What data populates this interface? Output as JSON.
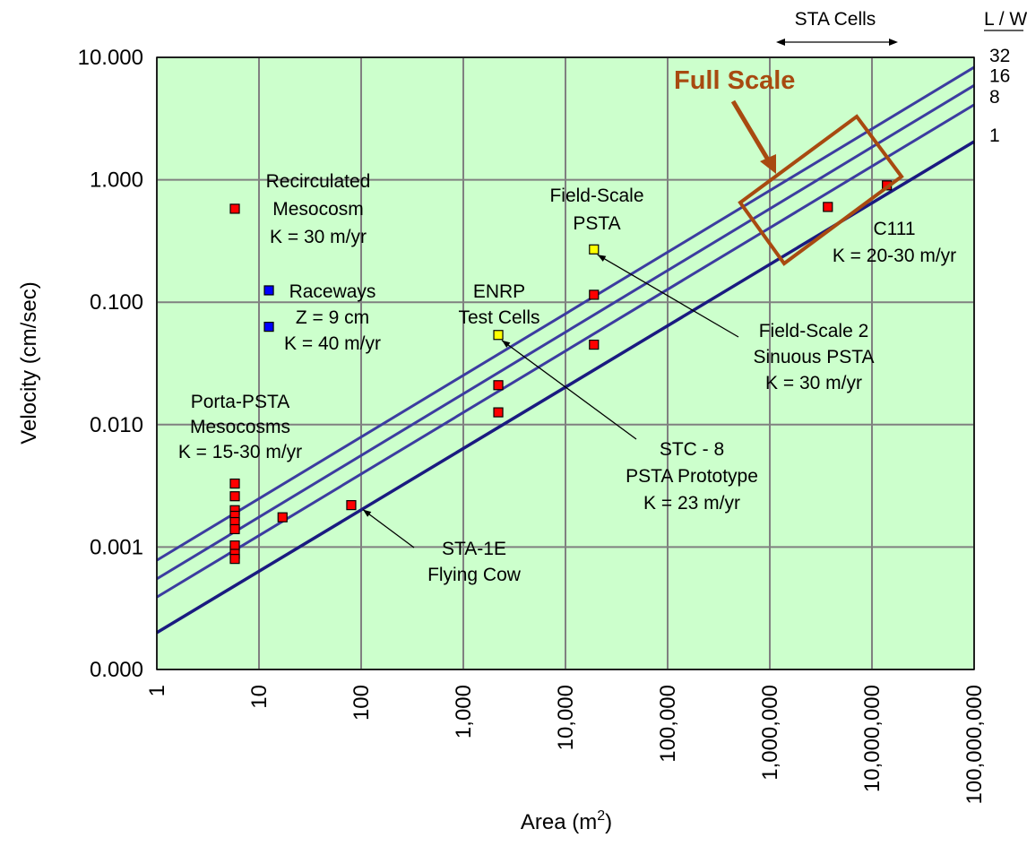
{
  "chart_data": {
    "type": "scatter",
    "xlabel": "Area (m",
    "xlabel_sup": "2",
    "xlabel_tail": ")",
    "ylabel": "Velocity (cm/sec)",
    "x_scale": "log",
    "y_scale": "log",
    "xlim": [
      1,
      100000000
    ],
    "ylim": [
      0.0001,
      10
    ],
    "grid": true,
    "plot_background": "#ccffcc",
    "x_ticks": [
      {
        "value": 1,
        "label": "1"
      },
      {
        "value": 10,
        "label": "10"
      },
      {
        "value": 100,
        "label": "100"
      },
      {
        "value": 1000,
        "label": "1,000"
      },
      {
        "value": 10000,
        "label": "10,000"
      },
      {
        "value": 100000,
        "label": "100,000"
      },
      {
        "value": 1000000,
        "label": "1,000,000"
      },
      {
        "value": 10000000,
        "label": "10,000,000"
      },
      {
        "value": 100000000,
        "label": "100,000,000"
      }
    ],
    "y_ticks": [
      {
        "value": 0.0001,
        "label": "0.000"
      },
      {
        "value": 0.001,
        "label": "0.001"
      },
      {
        "value": 0.01,
        "label": "0.010"
      },
      {
        "value": 0.1,
        "label": "0.100"
      },
      {
        "value": 1,
        "label": "1.000"
      },
      {
        "value": 10,
        "label": "10.000"
      }
    ],
    "lines": [
      {
        "name": "32",
        "color": "#3c3ca0",
        "points": [
          [
            1,
            0.00078
          ],
          [
            100000000,
            8.3
          ]
        ]
      },
      {
        "name": "16",
        "color": "#3c3ca0",
        "points": [
          [
            1,
            0.00055
          ],
          [
            100000000,
            5.9
          ]
        ]
      },
      {
        "name": "8",
        "color": "#3c3ca0",
        "points": [
          [
            1,
            0.00039
          ],
          [
            100000000,
            4.1
          ]
        ]
      },
      {
        "name": "1",
        "color": "#1a1a80",
        "points": [
          [
            1,
            0.0002
          ],
          [
            100000000,
            2.05
          ]
        ]
      }
    ],
    "series": [
      {
        "color": "#ff0000",
        "points": [
          {
            "x": 5.8,
            "y": 0.58
          },
          {
            "x": 5.8,
            "y": 0.0033
          },
          {
            "x": 5.8,
            "y": 0.0026
          },
          {
            "x": 5.8,
            "y": 0.002
          },
          {
            "x": 5.8,
            "y": 0.0018
          },
          {
            "x": 5.8,
            "y": 0.0016
          },
          {
            "x": 5.8,
            "y": 0.0014
          },
          {
            "x": 5.8,
            "y": 0.00103
          },
          {
            "x": 5.8,
            "y": 0.00088
          },
          {
            "x": 5.8,
            "y": 0.0008
          },
          {
            "x": 17,
            "y": 0.00175
          },
          {
            "x": 80,
            "y": 0.0022
          },
          {
            "x": 2200,
            "y": 0.021
          },
          {
            "x": 2200,
            "y": 0.0126
          },
          {
            "x": 19000,
            "y": 0.115
          },
          {
            "x": 19000,
            "y": 0.045
          },
          {
            "x": 3700000,
            "y": 0.6
          },
          {
            "x": 14000000,
            "y": 0.9
          }
        ]
      },
      {
        "color": "#0000ff",
        "points": [
          {
            "x": 12.5,
            "y": 0.125
          },
          {
            "x": 12.5,
            "y": 0.063
          }
        ]
      },
      {
        "color": "#ffff00",
        "points": [
          {
            "x": 2200,
            "y": 0.054
          },
          {
            "x": 19000,
            "y": 0.27
          }
        ]
      }
    ],
    "annotations": [
      {
        "lines": [
          "Recirculated",
          "Mesocosm",
          "K = 30 m/yr"
        ]
      },
      {
        "lines": [
          "Raceways",
          "Z = 9 cm",
          "K = 40 m/yr"
        ]
      },
      {
        "lines": [
          "Porta-PSTA",
          "Mesocosms",
          "K = 15-30 m/yr"
        ]
      },
      {
        "lines": [
          "ENRP",
          "Test Cells"
        ]
      },
      {
        "lines": [
          "Field-Scale",
          "PSTA"
        ]
      },
      {
        "lines": [
          "Field-Scale 2",
          "Sinuous PSTA",
          "K = 30 m/yr"
        ]
      },
      {
        "lines": [
          "STC - 8",
          "PSTA Prototype",
          "K = 23 m/yr"
        ]
      },
      {
        "lines": [
          "STA-1E",
          "Flying Cow"
        ]
      },
      {
        "lines": [
          "C111",
          "K = 20-30 m/yr"
        ]
      }
    ],
    "full_scale_label": "Full Scale",
    "full_scale_color": "#a84a10",
    "sta_cells_label": "STA Cells",
    "lw_header": "L / W"
  }
}
